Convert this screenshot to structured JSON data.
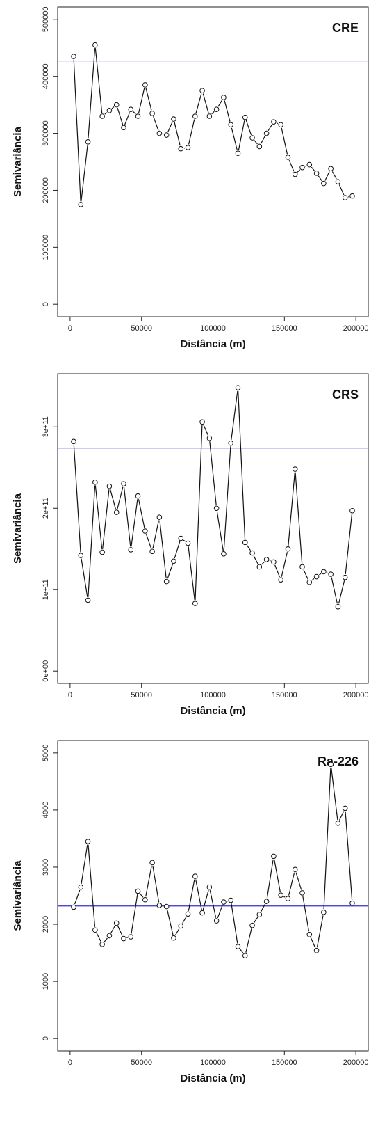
{
  "chart_data": [
    {
      "type": "line",
      "title": "CRE",
      "xlabel": "Distância (m)",
      "ylabel": "Semivariância",
      "xlim": [
        0,
        200000
      ],
      "ylim": [
        0,
        500000
      ],
      "xticks": [
        0,
        50000,
        100000,
        150000,
        200000
      ],
      "xtick_labels": [
        "0",
        "50000",
        "100000",
        "150000",
        "200000"
      ],
      "yticks": [
        0,
        100000,
        200000,
        300000,
        400000,
        500000
      ],
      "ytick_labels": [
        "0",
        "100000",
        "200000",
        "300000",
        "400000",
        "500000"
      ],
      "reference_line": {
        "y": 427000,
        "color": "#3333cc"
      },
      "grid": false,
      "series": [
        {
          "x": [
            2500,
            7500,
            12500,
            17500,
            22500,
            27500,
            32500,
            37500,
            42500,
            47500,
            52500,
            57500,
            62500,
            67500,
            72500,
            77500,
            82500,
            87500,
            92500,
            97500,
            102500,
            107500,
            112500,
            117500,
            122500,
            127500,
            132500,
            137500,
            142500,
            147500,
            152500,
            157500,
            162500,
            167500,
            172500,
            177500,
            182500,
            187500,
            192500,
            197500
          ],
          "y": [
            435000,
            175000,
            285000,
            455000,
            330000,
            340000,
            350000,
            310000,
            342000,
            330000,
            385000,
            335000,
            300000,
            297000,
            325000,
            273000,
            275000,
            330000,
            375000,
            330000,
            342000,
            363000,
            315000,
            265000,
            328000,
            292000,
            277000,
            300000,
            320000,
            315000,
            258000,
            228000,
            240000,
            245000,
            230000,
            212000,
            238000,
            215000,
            187000,
            190000
          ]
        }
      ]
    },
    {
      "type": "line",
      "title": "CRS",
      "xlabel": "Distância (m)",
      "ylabel": "Semivariância",
      "xlim": [
        0,
        200000
      ],
      "ylim": [
        0,
        350000000000
      ],
      "xticks": [
        0,
        50000,
        100000,
        150000,
        200000
      ],
      "xtick_labels": [
        "0",
        "50000",
        "100000",
        "150000",
        "200000"
      ],
      "yticks": [
        0,
        100000000000,
        200000000000,
        300000000000
      ],
      "ytick_labels": [
        "0e+00",
        "1e+11",
        "2e+11",
        "3e+11"
      ],
      "reference_line": {
        "y": 274000000000,
        "color": "#3333cc"
      },
      "grid": false,
      "series": [
        {
          "x": [
            2500,
            7500,
            12500,
            17500,
            22500,
            27500,
            32500,
            37500,
            42500,
            47500,
            52500,
            57500,
            62500,
            67500,
            72500,
            77500,
            82500,
            87500,
            92500,
            97500,
            102500,
            107500,
            112500,
            117500,
            122500,
            127500,
            132500,
            137500,
            142500,
            147500,
            152500,
            157500,
            162500,
            167500,
            172500,
            177500,
            182500,
            187500,
            192500,
            197500
          ],
          "y": [
            282000000000,
            142000000000,
            87000000000,
            232000000000,
            146000000000,
            227000000000,
            195000000000,
            230000000000,
            149000000000,
            215000000000,
            172000000000,
            147000000000,
            189000000000,
            110000000000,
            135000000000,
            163000000000,
            157000000000,
            83000000000,
            306000000000,
            286000000000,
            200000000000,
            144000000000,
            280000000000,
            348000000000,
            158000000000,
            145000000000,
            128000000000,
            137000000000,
            134000000000,
            112000000000,
            150000000000,
            248000000000,
            128000000000,
            109000000000,
            116000000000,
            122000000000,
            119000000000,
            79000000000,
            115000000000,
            197000000000
          ]
        }
      ]
    },
    {
      "type": "line",
      "title": "Ra-226",
      "xlabel": "Distância (m)",
      "ylabel": "Semivariância",
      "xlim": [
        0,
        200000
      ],
      "ylim": [
        0,
        5000
      ],
      "xticks": [
        0,
        50000,
        100000,
        150000,
        200000
      ],
      "xtick_labels": [
        "0",
        "50000",
        "100000",
        "150000",
        "200000"
      ],
      "yticks": [
        0,
        1000,
        2000,
        3000,
        4000,
        5000
      ],
      "ytick_labels": [
        "0",
        "1000",
        "2000",
        "3000",
        "4000",
        "5000"
      ],
      "reference_line": {
        "y": 2320,
        "color": "#3333cc"
      },
      "grid": false,
      "series": [
        {
          "x": [
            2500,
            7500,
            12500,
            17500,
            22500,
            27500,
            32500,
            37500,
            42500,
            47500,
            52500,
            57500,
            62500,
            67500,
            72500,
            77500,
            82500,
            87500,
            92500,
            97500,
            102500,
            107500,
            112500,
            117500,
            122500,
            127500,
            132500,
            137500,
            142500,
            147500,
            152500,
            157500,
            162500,
            167500,
            172500,
            177500,
            182500,
            187500,
            192500,
            197500
          ],
          "y": [
            2300,
            2650,
            3450,
            1900,
            1650,
            1800,
            2020,
            1750,
            1780,
            2580,
            2430,
            3080,
            2330,
            2310,
            1760,
            1970,
            2180,
            2840,
            2200,
            2650,
            2060,
            2390,
            2420,
            1610,
            1450,
            1980,
            2170,
            2400,
            3190,
            2510,
            2450,
            2960,
            2550,
            1820,
            1540,
            2210,
            4800,
            3770,
            4030,
            2370
          ]
        }
      ]
    }
  ]
}
